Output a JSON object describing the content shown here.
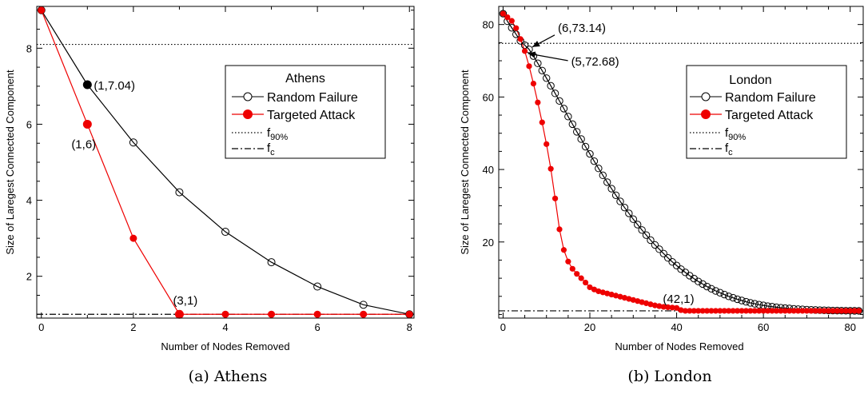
{
  "charts": [
    {
      "type": "line",
      "city": "Athens",
      "caption": "(a) Athens",
      "xlabel": "Number of Nodes Removed",
      "ylabel": "Size of Laregest Connected Component",
      "xlim": [
        -0.1,
        8.1
      ],
      "ylim": [
        0.9,
        9.1
      ],
      "xticks": [
        0,
        2,
        4,
        6,
        8
      ],
      "xminor": 1,
      "yticks": [
        2,
        4,
        6,
        8
      ],
      "yminor": 0.5,
      "f90_level": 8.1,
      "fc_level": 1,
      "legend": {
        "title": "Athens",
        "random": "Random Failure",
        "targeted": "Targeted Attack",
        "f90_base": "f",
        "f90_sub": "90%",
        "fc_base": "f",
        "fc_sub": "c"
      },
      "series": [
        {
          "name": "Random Failure",
          "color": "#000000",
          "marker": "open",
          "x": [
            0,
            1,
            2,
            3,
            4,
            5,
            6,
            7,
            8
          ],
          "y": [
            9,
            7.04,
            5.52,
            4.21,
            3.17,
            2.37,
            1.73,
            1.25,
            1
          ]
        },
        {
          "name": "Targeted Attack",
          "color": "#ee0000",
          "marker": "filled",
          "x": [
            0,
            1,
            2,
            3,
            4,
            5,
            6,
            7,
            8
          ],
          "y": [
            9,
            6,
            3,
            1,
            1,
            1,
            1,
            1,
            1
          ]
        }
      ],
      "annotations": [
        {
          "label": "(1,7.04)",
          "x": 1,
          "y": 7.04,
          "color": "#000000"
        },
        {
          "label": "(1,6)",
          "x": 1,
          "y": 6,
          "color": "#ee0000"
        },
        {
          "label": "(3,1)",
          "x": 3,
          "y": 1,
          "color": "#ee0000"
        }
      ]
    },
    {
      "type": "line",
      "city": "London",
      "caption": "(b) London",
      "xlabel": "Number of Nodes Removed",
      "ylabel": "Size of Laregest Connected Component",
      "xlim": [
        -1,
        83
      ],
      "ylim": [
        -1,
        85
      ],
      "xticks": [
        0,
        20,
        40,
        60,
        80
      ],
      "xminor": 5,
      "yticks": [
        20,
        40,
        60,
        80
      ],
      "yminor": 5,
      "f90_level": 74.8,
      "fc_level": 1,
      "legend": {
        "title": "London",
        "random": "Random Failure",
        "targeted": "Targeted Attack",
        "f90_base": "f",
        "f90_sub": "90%",
        "fc_base": "f",
        "fc_sub": "c"
      },
      "series": [
        {
          "name": "Random Failure",
          "color": "#000000",
          "marker": "open",
          "x": [
            0,
            1,
            2,
            3,
            4,
            5,
            6,
            7,
            8,
            9,
            10,
            11,
            12,
            13,
            14,
            15,
            16,
            17,
            18,
            19,
            20,
            21,
            22,
            23,
            24,
            25,
            26,
            27,
            28,
            29,
            30,
            31,
            32,
            33,
            34,
            35,
            36,
            37,
            38,
            39,
            40,
            41,
            42,
            43,
            44,
            45,
            46,
            47,
            48,
            49,
            50,
            51,
            52,
            53,
            54,
            55,
            56,
            57,
            58,
            59,
            60,
            61,
            62,
            63,
            64,
            65,
            66,
            67,
            68,
            69,
            70,
            71,
            72,
            73,
            74,
            75,
            76,
            77,
            78,
            79,
            80,
            81,
            82
          ],
          "y": [
            83,
            80.9,
            79.1,
            77.3,
            75.5,
            74.3,
            73.14,
            71.3,
            69.3,
            67.3,
            65.2,
            63.1,
            61,
            58.9,
            56.8,
            54.6,
            52.5,
            50.4,
            48.4,
            46.3,
            44.3,
            42.3,
            40.3,
            38.4,
            36.5,
            34.7,
            32.9,
            31.2,
            29.5,
            27.9,
            26.3,
            24.8,
            23.3,
            21.9,
            20.5,
            19.2,
            18,
            16.8,
            15.6,
            14.5,
            13.5,
            12.5,
            11.6,
            10.7,
            9.9,
            9.1,
            8.4,
            7.7,
            7.1,
            6.5,
            6,
            5.5,
            5,
            4.6,
            4.2,
            3.85,
            3.5,
            3.2,
            2.95,
            2.7,
            2.5,
            2.3,
            2.15,
            2,
            1.85,
            1.75,
            1.65,
            1.55,
            1.47,
            1.4,
            1.34,
            1.28,
            1.23,
            1.19,
            1.15,
            1.12,
            1.09,
            1.07,
            1.05,
            1.03,
            1.02,
            1.01,
            1
          ]
        },
        {
          "name": "Targeted Attack",
          "color": "#ee0000",
          "marker": "filled",
          "x": [
            0,
            1,
            2,
            3,
            4,
            5,
            6,
            7,
            8,
            9,
            10,
            11,
            12,
            13,
            14,
            15,
            16,
            17,
            18,
            19,
            20,
            21,
            22,
            23,
            24,
            25,
            26,
            27,
            28,
            29,
            30,
            31,
            32,
            33,
            34,
            35,
            36,
            37,
            38,
            39,
            40,
            41,
            42,
            43,
            44,
            45,
            46,
            47,
            48,
            49,
            50,
            51,
            52,
            53,
            54,
            55,
            56,
            57,
            58,
            59,
            60,
            61,
            62,
            63,
            64,
            65,
            66,
            67,
            68,
            69,
            70,
            71,
            72,
            73,
            74,
            75,
            76,
            77,
            78,
            79,
            80,
            81,
            82
          ],
          "y": [
            83,
            82,
            81,
            79,
            76,
            72.68,
            68.5,
            63.7,
            58.5,
            53,
            47,
            40.2,
            32,
            23.5,
            17.8,
            14.6,
            12.6,
            11.2,
            10,
            8.8,
            7.5,
            6.9,
            6.4,
            6.1,
            5.8,
            5.5,
            5.2,
            4.9,
            4.6,
            4.3,
            4,
            3.7,
            3.4,
            3.1,
            2.8,
            2.5,
            2.3,
            2.1,
            2,
            1.9,
            1.8,
            1.2,
            1,
            1,
            1,
            1,
            1,
            1,
            1,
            1,
            1,
            1,
            1,
            1,
            1,
            1,
            1,
            1,
            1,
            1,
            1,
            1,
            1,
            1,
            1,
            1,
            1,
            1,
            1,
            1,
            1,
            1,
            1,
            1,
            1,
            1,
            1,
            1,
            1,
            1,
            1,
            1,
            1
          ]
        }
      ],
      "annotations": [
        {
          "label": "(6,73.14)",
          "x": 6,
          "y": 73.14,
          "color": "#000000"
        },
        {
          "label": "(5,72.68)",
          "x": 5,
          "y": 72.68,
          "color": "#000000"
        },
        {
          "label": "(42,1)",
          "x": 42,
          "y": 1,
          "color": "#000000"
        }
      ]
    }
  ]
}
